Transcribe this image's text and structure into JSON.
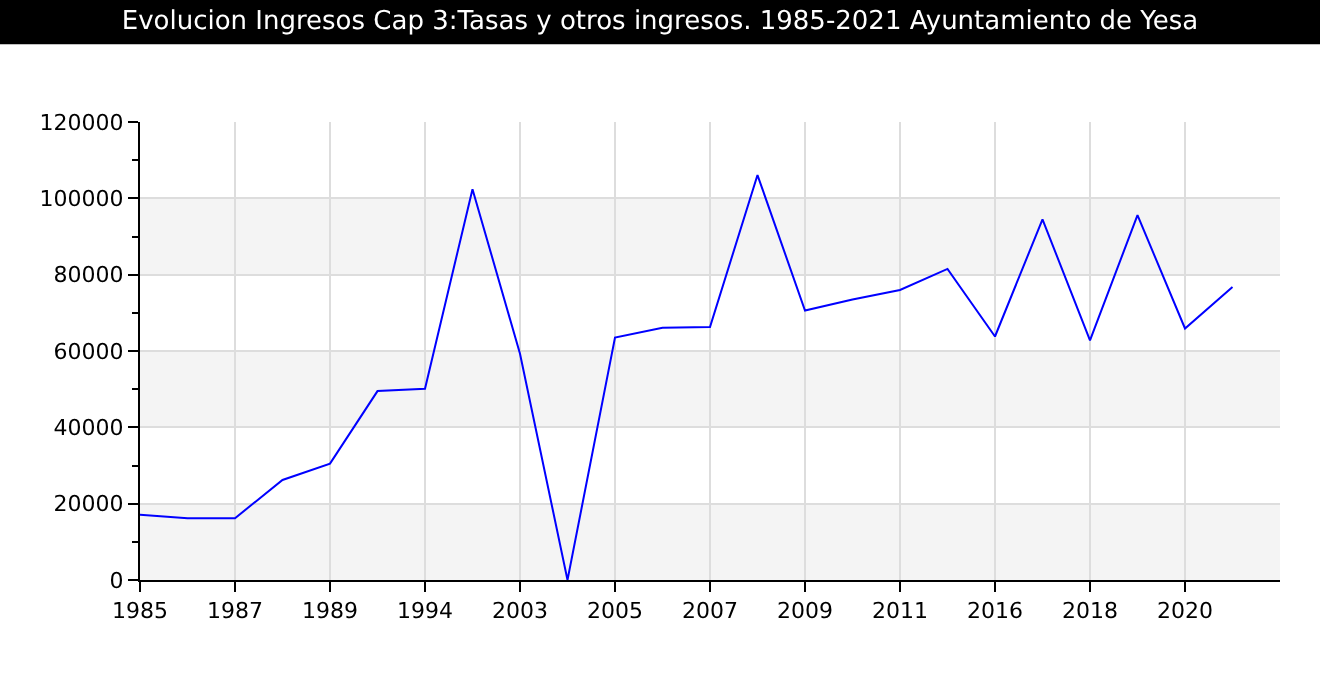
{
  "chart_data": {
    "type": "line",
    "title": "Evolucion Ingresos Cap 3:Tasas y otros ingresos. 1985-2021 Ayuntamiento de Yesa",
    "categories": [
      "1985",
      null,
      "1987",
      null,
      "1989",
      null,
      "1994",
      null,
      "2003",
      null,
      "2005",
      null,
      "2007",
      null,
      "2009",
      null,
      "2011",
      null,
      "2016",
      null,
      "2018",
      null,
      "2020",
      null
    ],
    "series": [
      {
        "color": "#0000ff",
        "values": [
          17100,
          16200,
          16200,
          26200,
          30500,
          49500,
          50100,
          102400,
          59300,
          0,
          63500,
          66100,
          66300,
          106100,
          70600,
          73500,
          76000,
          81500,
          63800,
          94500,
          62800,
          95600,
          65900,
          76800
        ]
      }
    ],
    "ylim": [
      0,
      120000
    ],
    "yticks": [
      0,
      20000,
      40000,
      60000,
      80000,
      100000,
      120000
    ],
    "bands": [
      {
        "axis": "y",
        "from": 0,
        "to": 20000,
        "color": "#f4f4f4"
      },
      {
        "axis": "y",
        "from": 40000,
        "to": 60000,
        "color": "#f4f4f4"
      },
      {
        "axis": "y",
        "from": 80000,
        "to": 100000,
        "color": "#f4f4f4"
      }
    ],
    "grid": true,
    "marker": "none",
    "line_style": "solid"
  }
}
